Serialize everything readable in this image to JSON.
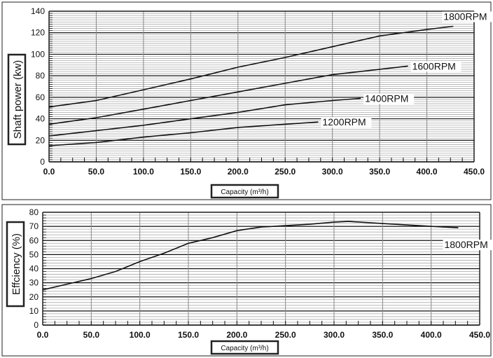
{
  "chart_data": [
    {
      "type": "line",
      "title": "",
      "xlabel": "Capacity (m³/h)",
      "ylabel": "Shaft power (kw)",
      "xlim": [
        0,
        450
      ],
      "ylim": [
        0,
        140
      ],
      "x_ticks": [
        "0.0",
        "50.0",
        "100.0",
        "150.0",
        "200.0",
        "250.0",
        "300.0",
        "350.0",
        "400.0",
        "450.0"
      ],
      "y_ticks": [
        "0",
        "20",
        "40",
        "60",
        "80",
        "100",
        "120",
        "140"
      ],
      "grid": true,
      "series": [
        {
          "name": "1800RPM",
          "x": [
            0,
            50,
            100,
            150,
            200,
            250,
            300,
            350,
            400,
            428
          ],
          "y": [
            51,
            57,
            67,
            77,
            88,
            97,
            107,
            117,
            123,
            126
          ]
        },
        {
          "name": "1600RPM",
          "x": [
            0,
            50,
            100,
            150,
            200,
            250,
            300,
            350,
            380
          ],
          "y": [
            35,
            41,
            49,
            57,
            65,
            73,
            81,
            86,
            89
          ]
        },
        {
          "name": "1400RPM",
          "x": [
            0,
            50,
            100,
            150,
            200,
            250,
            300,
            330
          ],
          "y": [
            24,
            29,
            34,
            40,
            46,
            53,
            57,
            59
          ]
        },
        {
          "name": "1200RPM",
          "x": [
            0,
            50,
            100,
            150,
            200,
            250,
            285
          ],
          "y": [
            15,
            18,
            23,
            27,
            32,
            35,
            37
          ]
        }
      ]
    },
    {
      "type": "line",
      "title": "",
      "xlabel": "Capacity (m³/h)",
      "ylabel": "Effciency (%)",
      "xlim": [
        0,
        450
      ],
      "ylim": [
        0,
        80
      ],
      "x_ticks": [
        "0.0",
        "50.0",
        "100.0",
        "150.0",
        "200.0",
        "250.0",
        "300.0",
        "350.0",
        "400.0",
        "450.0"
      ],
      "y_ticks": [
        "0",
        "10",
        "20",
        "30",
        "40",
        "50",
        "60",
        "70",
        "80"
      ],
      "grid": true,
      "series": [
        {
          "name": "1800RPM",
          "x": [
            0,
            25,
            50,
            75,
            100,
            125,
            150,
            175,
            200,
            225,
            250,
            275,
            300,
            315,
            350,
            400,
            428
          ],
          "y": [
            25,
            29,
            33,
            38,
            45,
            51,
            58,
            62,
            67,
            69.5,
            70.5,
            71.5,
            73,
            73.5,
            72,
            70,
            69
          ]
        }
      ]
    }
  ]
}
